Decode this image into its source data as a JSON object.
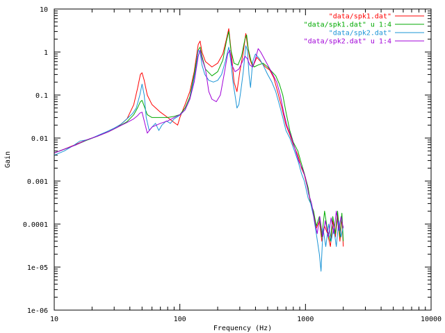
{
  "chart_data": {
    "type": "line",
    "xlabel": "Frequency (Hz)",
    "ylabel": "Gain",
    "x_scale": "log",
    "y_scale": "log",
    "xlim": [
      10,
      10000
    ],
    "ylim": [
      1e-06,
      10
    ],
    "x_ticks": [
      {
        "value": 10,
        "label": "10"
      },
      {
        "value": 100,
        "label": "100"
      },
      {
        "value": 1000,
        "label": "1000"
      },
      {
        "value": 10000,
        "label": "10000"
      }
    ],
    "y_ticks": [
      {
        "value": 10,
        "label": "10"
      },
      {
        "value": 1,
        "label": "1"
      },
      {
        "value": 0.1,
        "label": "0.1"
      },
      {
        "value": 0.01,
        "label": "0.01"
      },
      {
        "value": 0.001,
        "label": "0.001"
      },
      {
        "value": 0.0001,
        "label": "0.0001"
      },
      {
        "value": 1e-05,
        "label": "1e-05"
      },
      {
        "value": 1e-06,
        "label": "1e-06"
      }
    ],
    "grid": false,
    "legend_position": "top-right",
    "series": [
      {
        "name": "\"data/spk1.dat\"",
        "color": "#ff0000",
        "points": [
          [
            10,
            0.0045
          ],
          [
            12,
            0.0055
          ],
          [
            15,
            0.0072
          ],
          [
            18,
            0.009
          ],
          [
            22,
            0.011
          ],
          [
            27,
            0.014
          ],
          [
            32,
            0.018
          ],
          [
            38,
            0.028
          ],
          [
            43,
            0.06
          ],
          [
            46,
            0.14
          ],
          [
            48.5,
            0.3
          ],
          [
            50,
            0.33
          ],
          [
            52,
            0.22
          ],
          [
            55,
            0.1
          ],
          [
            60,
            0.06
          ],
          [
            70,
            0.04
          ],
          [
            80,
            0.03
          ],
          [
            90,
            0.023
          ],
          [
            96,
            0.02
          ],
          [
            100,
            0.03
          ],
          [
            110,
            0.06
          ],
          [
            120,
            0.12
          ],
          [
            130,
            0.35
          ],
          [
            140,
            1.5
          ],
          [
            145,
            1.8
          ],
          [
            150,
            1.0
          ],
          [
            160,
            0.6
          ],
          [
            180,
            0.45
          ],
          [
            200,
            0.55
          ],
          [
            220,
            0.9
          ],
          [
            235,
            2.0
          ],
          [
            245,
            3.5
          ],
          [
            255,
            1.2
          ],
          [
            270,
            0.2
          ],
          [
            285,
            0.12
          ],
          [
            300,
            0.35
          ],
          [
            320,
            1.0
          ],
          [
            335,
            2.7
          ],
          [
            345,
            1.5
          ],
          [
            360,
            0.7
          ],
          [
            380,
            0.45
          ],
          [
            410,
            0.75
          ],
          [
            440,
            0.6
          ],
          [
            480,
            0.45
          ],
          [
            520,
            0.38
          ],
          [
            560,
            0.25
          ],
          [
            600,
            0.12
          ],
          [
            650,
            0.05
          ],
          [
            700,
            0.02
          ],
          [
            750,
            0.012
          ],
          [
            800,
            0.007
          ],
          [
            870,
            0.004
          ],
          [
            930,
            0.002
          ],
          [
            980,
            0.0014
          ],
          [
            1050,
            0.0006
          ],
          [
            1100,
            0.0003
          ],
          [
            1160,
            0.00018
          ],
          [
            1220,
            8e-05
          ],
          [
            1290,
            0.00012
          ],
          [
            1350,
            4e-05
          ],
          [
            1420,
            9e-05
          ],
          [
            1500,
            6e-05
          ],
          [
            1580,
            3e-05
          ],
          [
            1650,
            0.00012
          ],
          [
            1730,
            5e-05
          ],
          [
            1800,
            0.00016
          ],
          [
            1880,
            4e-05
          ],
          [
            1950,
            0.00015
          ],
          [
            2000,
            3e-05
          ]
        ]
      },
      {
        "name": "\"data/spk1.dat\" u 1:4",
        "color": "#00aa00",
        "points": [
          [
            10,
            0.0045
          ],
          [
            12,
            0.0055
          ],
          [
            15,
            0.007
          ],
          [
            18,
            0.0088
          ],
          [
            22,
            0.011
          ],
          [
            27,
            0.014
          ],
          [
            32,
            0.018
          ],
          [
            38,
            0.024
          ],
          [
            43,
            0.035
          ],
          [
            46,
            0.05
          ],
          [
            48.5,
            0.07
          ],
          [
            50,
            0.075
          ],
          [
            52,
            0.055
          ],
          [
            55,
            0.035
          ],
          [
            60,
            0.03
          ],
          [
            70,
            0.03
          ],
          [
            80,
            0.03
          ],
          [
            90,
            0.032
          ],
          [
            100,
            0.035
          ],
          [
            110,
            0.05
          ],
          [
            120,
            0.09
          ],
          [
            130,
            0.3
          ],
          [
            140,
            1.1
          ],
          [
            145,
            1.3
          ],
          [
            150,
            0.8
          ],
          [
            160,
            0.4
          ],
          [
            180,
            0.28
          ],
          [
            200,
            0.35
          ],
          [
            220,
            0.65
          ],
          [
            235,
            1.8
          ],
          [
            245,
            3.0
          ],
          [
            255,
            1.1
          ],
          [
            270,
            0.55
          ],
          [
            290,
            0.5
          ],
          [
            310,
            0.8
          ],
          [
            330,
            2.0
          ],
          [
            340,
            2.5
          ],
          [
            350,
            1.2
          ],
          [
            370,
            0.6
          ],
          [
            390,
            0.45
          ],
          [
            420,
            0.5
          ],
          [
            460,
            0.55
          ],
          [
            500,
            0.45
          ],
          [
            540,
            0.35
          ],
          [
            580,
            0.28
          ],
          [
            620,
            0.18
          ],
          [
            660,
            0.1
          ],
          [
            700,
            0.04
          ],
          [
            750,
            0.015
          ],
          [
            800,
            0.008
          ],
          [
            870,
            0.005
          ],
          [
            930,
            0.0025
          ],
          [
            980,
            0.0015
          ],
          [
            1050,
            0.0007
          ],
          [
            1100,
            0.0003
          ],
          [
            1160,
            0.0002
          ],
          [
            1220,
            9e-05
          ],
          [
            1290,
            0.00015
          ],
          [
            1350,
            5e-05
          ],
          [
            1420,
            0.0002
          ],
          [
            1500,
            7e-05
          ],
          [
            1580,
            4e-05
          ],
          [
            1650,
            0.00015
          ],
          [
            1730,
            6e-05
          ],
          [
            1800,
            0.0002
          ],
          [
            1880,
            5e-05
          ],
          [
            1950,
            0.00018
          ],
          [
            2000,
            4e-05
          ]
        ]
      },
      {
        "name": "\"data/spk2.dat\"",
        "color": "#1a94d6",
        "points": [
          [
            10,
            0.004
          ],
          [
            12,
            0.005
          ],
          [
            14,
            0.0065
          ],
          [
            16,
            0.0085
          ],
          [
            18,
            0.009
          ],
          [
            20,
            0.01
          ],
          [
            23,
            0.012
          ],
          [
            26,
            0.014
          ],
          [
            30,
            0.017
          ],
          [
            34,
            0.021
          ],
          [
            38,
            0.028
          ],
          [
            42,
            0.037
          ],
          [
            45,
            0.05
          ],
          [
            48,
            0.1
          ],
          [
            50,
            0.18
          ],
          [
            52,
            0.1
          ],
          [
            54,
            0.03
          ],
          [
            57,
            0.015
          ],
          [
            60,
            0.018
          ],
          [
            64,
            0.022
          ],
          [
            68,
            0.015
          ],
          [
            72,
            0.02
          ],
          [
            78,
            0.025
          ],
          [
            84,
            0.022
          ],
          [
            90,
            0.028
          ],
          [
            100,
            0.034
          ],
          [
            110,
            0.045
          ],
          [
            120,
            0.08
          ],
          [
            128,
            0.2
          ],
          [
            134,
            0.4
          ],
          [
            140,
            1.1
          ],
          [
            145,
            1.0
          ],
          [
            150,
            0.5
          ],
          [
            158,
            0.3
          ],
          [
            170,
            0.22
          ],
          [
            185,
            0.2
          ],
          [
            200,
            0.22
          ],
          [
            215,
            0.3
          ],
          [
            230,
            0.6
          ],
          [
            245,
            1.3
          ],
          [
            255,
            0.6
          ],
          [
            265,
            0.2
          ],
          [
            275,
            0.1
          ],
          [
            285,
            0.05
          ],
          [
            295,
            0.06
          ],
          [
            305,
            0.12
          ],
          [
            320,
            0.35
          ],
          [
            335,
            1.4
          ],
          [
            345,
            1.1
          ],
          [
            355,
            0.3
          ],
          [
            365,
            0.15
          ],
          [
            380,
            0.6
          ],
          [
            400,
            0.9
          ],
          [
            430,
            0.7
          ],
          [
            460,
            0.5
          ],
          [
            500,
            0.3
          ],
          [
            540,
            0.2
          ],
          [
            580,
            0.12
          ],
          [
            620,
            0.06
          ],
          [
            660,
            0.03
          ],
          [
            700,
            0.015
          ],
          [
            750,
            0.01
          ],
          [
            800,
            0.006
          ],
          [
            870,
            0.003
          ],
          [
            930,
            0.0015
          ],
          [
            980,
            0.001
          ],
          [
            1050,
            0.0004
          ],
          [
            1100,
            0.0003
          ],
          [
            1160,
            0.00015
          ],
          [
            1220,
            6e-05
          ],
          [
            1290,
            2e-05
          ],
          [
            1330,
            8e-06
          ],
          [
            1380,
            8e-05
          ],
          [
            1450,
            3e-05
          ],
          [
            1530,
            0.0001
          ],
          [
            1600,
            4e-05
          ],
          [
            1680,
            8e-05
          ],
          [
            1760,
            3e-05
          ],
          [
            1840,
            0.00012
          ],
          [
            1920,
            5e-05
          ],
          [
            2000,
            9e-05
          ]
        ]
      },
      {
        "name": "\"data/spk2.dat\" u 1:4",
        "color": "#a000d8",
        "points": [
          [
            10,
            0.0045
          ],
          [
            12,
            0.0055
          ],
          [
            15,
            0.007
          ],
          [
            18,
            0.009
          ],
          [
            22,
            0.011
          ],
          [
            27,
            0.014
          ],
          [
            32,
            0.018
          ],
          [
            38,
            0.023
          ],
          [
            43,
            0.028
          ],
          [
            46,
            0.033
          ],
          [
            48,
            0.038
          ],
          [
            50,
            0.04
          ],
          [
            52,
            0.025
          ],
          [
            55,
            0.013
          ],
          [
            60,
            0.018
          ],
          [
            70,
            0.022
          ],
          [
            80,
            0.025
          ],
          [
            90,
            0.03
          ],
          [
            100,
            0.035
          ],
          [
            110,
            0.045
          ],
          [
            120,
            0.08
          ],
          [
            130,
            0.2
          ],
          [
            140,
            0.8
          ],
          [
            145,
            1.1
          ],
          [
            150,
            0.7
          ],
          [
            160,
            0.4
          ],
          [
            170,
            0.12
          ],
          [
            180,
            0.08
          ],
          [
            195,
            0.07
          ],
          [
            210,
            0.1
          ],
          [
            225,
            0.3
          ],
          [
            240,
            0.9
          ],
          [
            250,
            1.1
          ],
          [
            260,
            0.5
          ],
          [
            275,
            0.35
          ],
          [
            295,
            0.4
          ],
          [
            315,
            0.6
          ],
          [
            330,
            0.8
          ],
          [
            345,
            0.7
          ],
          [
            360,
            0.5
          ],
          [
            380,
            0.45
          ],
          [
            400,
            0.7
          ],
          [
            420,
            1.2
          ],
          [
            440,
            1.0
          ],
          [
            470,
            0.7
          ],
          [
            510,
            0.45
          ],
          [
            550,
            0.3
          ],
          [
            590,
            0.2
          ],
          [
            630,
            0.1
          ],
          [
            670,
            0.04
          ],
          [
            710,
            0.02
          ],
          [
            760,
            0.012
          ],
          [
            820,
            0.006
          ],
          [
            880,
            0.003
          ],
          [
            940,
            0.002
          ],
          [
            1000,
            0.0012
          ],
          [
            1060,
            0.0005
          ],
          [
            1120,
            0.0003
          ],
          [
            1180,
            0.00012
          ],
          [
            1240,
            6e-05
          ],
          [
            1300,
            0.00015
          ],
          [
            1370,
            5e-05
          ],
          [
            1440,
            0.00012
          ],
          [
            1520,
            5e-05
          ],
          [
            1600,
            0.00014
          ],
          [
            1680,
            6e-05
          ],
          [
            1760,
            0.0002
          ],
          [
            1840,
            7e-05
          ],
          [
            1920,
            0.00015
          ],
          [
            2000,
            8e-05
          ]
        ]
      }
    ]
  }
}
